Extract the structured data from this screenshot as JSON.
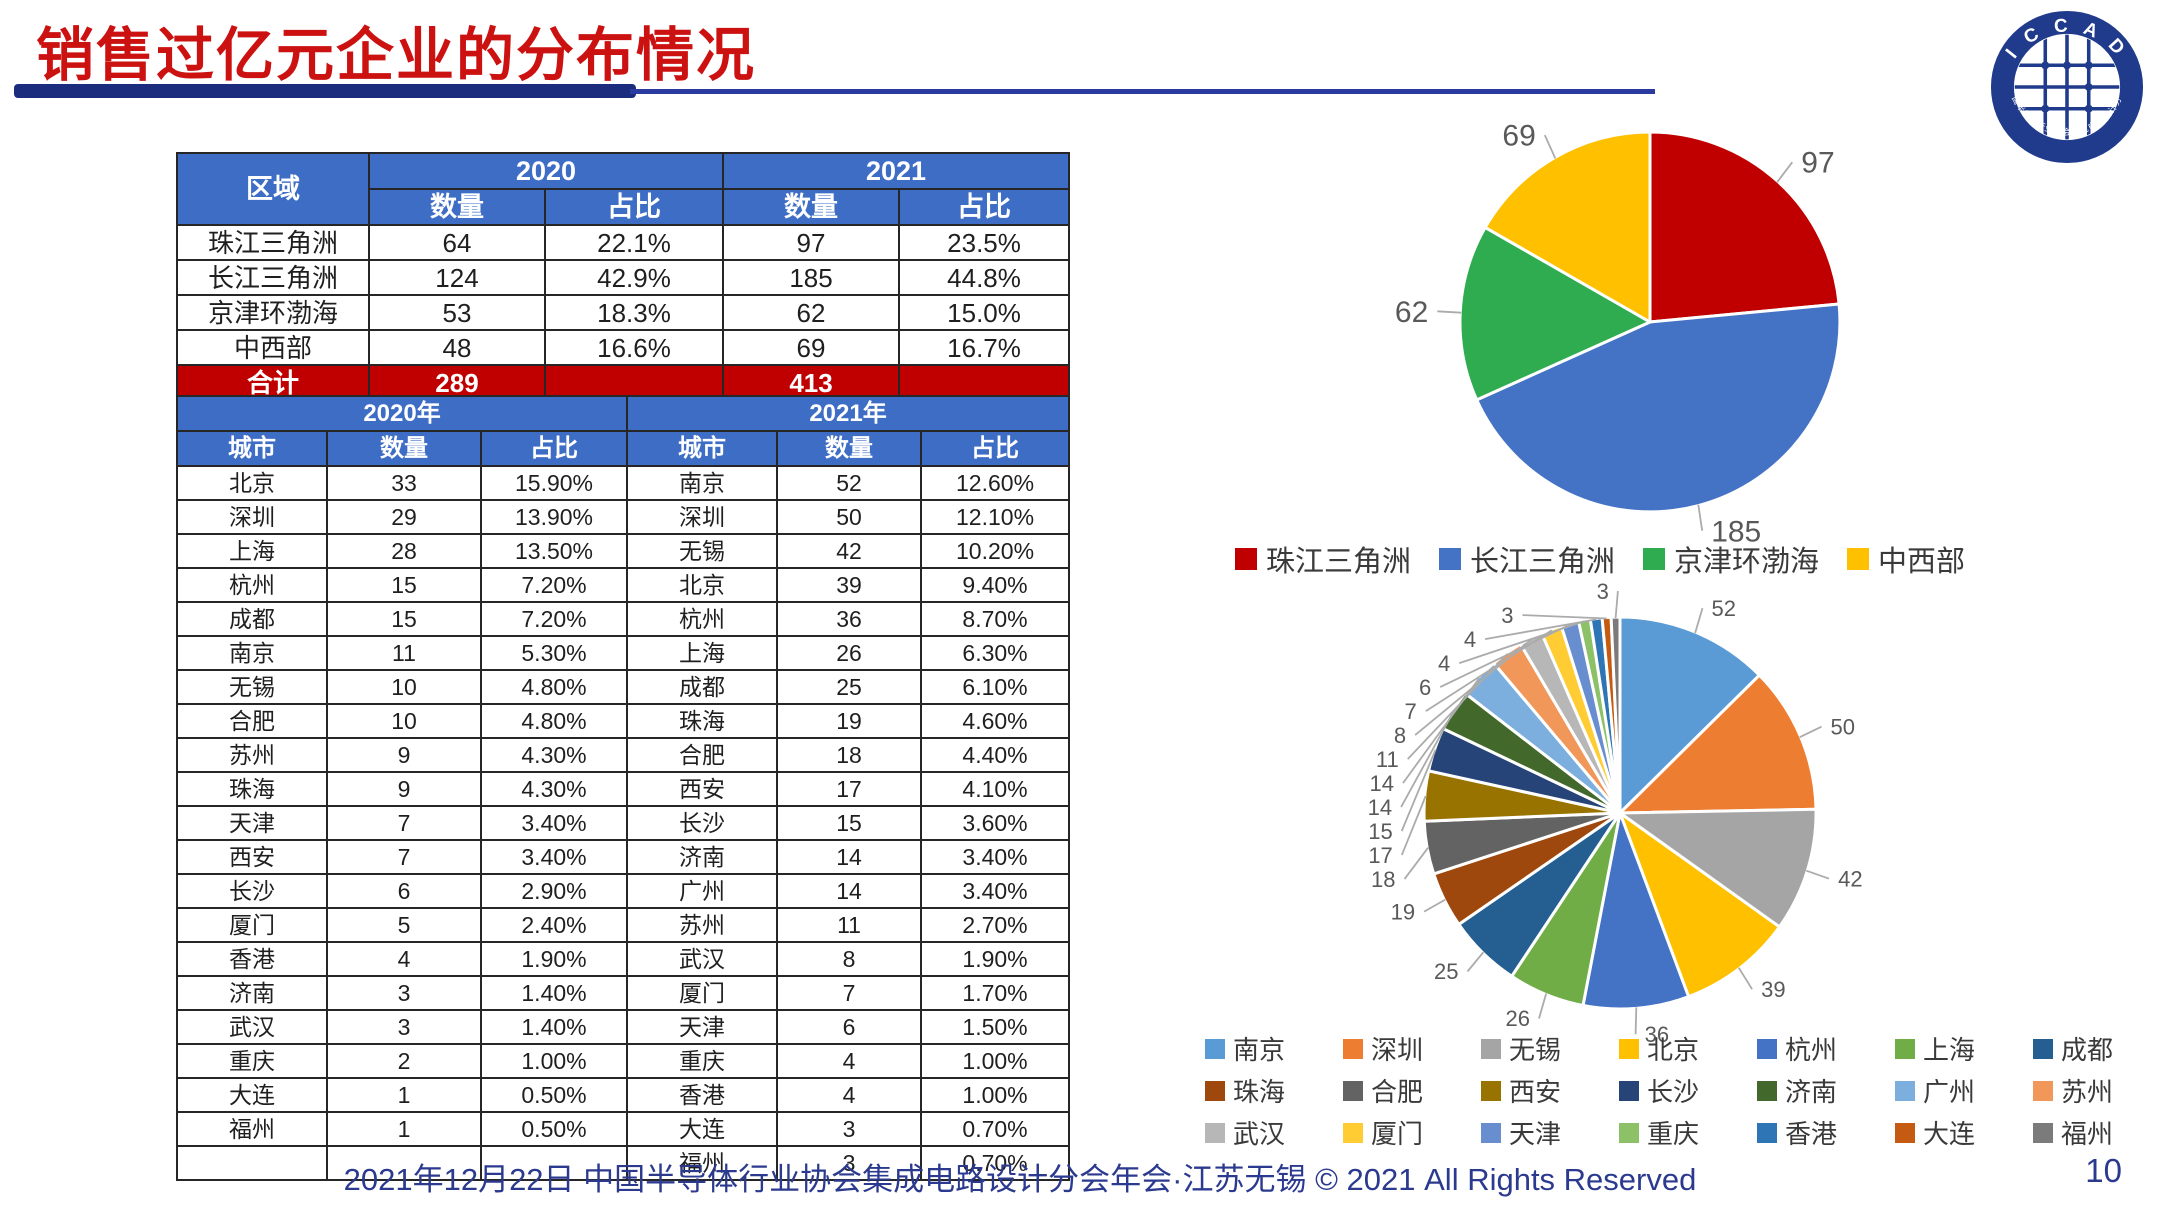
{
  "title": "销售过亿元企业的分布情况",
  "logo": {
    "top_text": "I C C A D",
    "bottom_text": "中国半导体行业协会集成电路设计分会"
  },
  "region_table": {
    "headers": {
      "region": "区域",
      "y2020": "2020",
      "y2021": "2021",
      "qty": "数量",
      "share": "占比"
    },
    "rows": [
      {
        "region": "珠江三角洲",
        "q2020": "64",
        "s2020": "22.1%",
        "q2021": "97",
        "s2021": "23.5%"
      },
      {
        "region": "长江三角洲",
        "q2020": "124",
        "s2020": "42.9%",
        "q2021": "185",
        "s2021": "44.8%"
      },
      {
        "region": "京津环渤海",
        "q2020": "53",
        "s2020": "18.3%",
        "q2021": "62",
        "s2021": "15.0%"
      },
      {
        "region": "中西部",
        "q2020": "48",
        "s2020": "16.6%",
        "q2021": "69",
        "s2021": "16.7%"
      }
    ],
    "total": {
      "label": "合计",
      "q2020": "289",
      "s2020": "",
      "q2021": "413",
      "s2021": ""
    }
  },
  "city_table": {
    "headers": {
      "y2020": "2020年",
      "y2021": "2021年",
      "city": "城市",
      "qty": "数量",
      "share": "占比"
    },
    "rows_2020": [
      [
        "北京",
        "33",
        "15.90%"
      ],
      [
        "深圳",
        "29",
        "13.90%"
      ],
      [
        "上海",
        "28",
        "13.50%"
      ],
      [
        "杭州",
        "15",
        "7.20%"
      ],
      [
        "成都",
        "15",
        "7.20%"
      ],
      [
        "南京",
        "11",
        "5.30%"
      ],
      [
        "无锡",
        "10",
        "4.80%"
      ],
      [
        "合肥",
        "10",
        "4.80%"
      ],
      [
        "苏州",
        "9",
        "4.30%"
      ],
      [
        "珠海",
        "9",
        "4.30%"
      ],
      [
        "天津",
        "7",
        "3.40%"
      ],
      [
        "西安",
        "7",
        "3.40%"
      ],
      [
        "长沙",
        "6",
        "2.90%"
      ],
      [
        "厦门",
        "5",
        "2.40%"
      ],
      [
        "香港",
        "4",
        "1.90%"
      ],
      [
        "济南",
        "3",
        "1.40%"
      ],
      [
        "武汉",
        "3",
        "1.40%"
      ],
      [
        "重庆",
        "2",
        "1.00%"
      ],
      [
        "大连",
        "1",
        "0.50%"
      ],
      [
        "福州",
        "1",
        "0.50%"
      ],
      [
        "",
        "",
        ""
      ]
    ],
    "rows_2021": [
      [
        "南京",
        "52",
        "12.60%"
      ],
      [
        "深圳",
        "50",
        "12.10%"
      ],
      [
        "无锡",
        "42",
        "10.20%"
      ],
      [
        "北京",
        "39",
        "9.40%"
      ],
      [
        "杭州",
        "36",
        "8.70%"
      ],
      [
        "上海",
        "26",
        "6.30%"
      ],
      [
        "成都",
        "25",
        "6.10%"
      ],
      [
        "珠海",
        "19",
        "4.60%"
      ],
      [
        "合肥",
        "18",
        "4.40%"
      ],
      [
        "西安",
        "17",
        "4.10%"
      ],
      [
        "长沙",
        "15",
        "3.60%"
      ],
      [
        "济南",
        "14",
        "3.40%"
      ],
      [
        "广州",
        "14",
        "3.40%"
      ],
      [
        "苏州",
        "11",
        "2.70%"
      ],
      [
        "武汉",
        "8",
        "1.90%"
      ],
      [
        "厦门",
        "7",
        "1.70%"
      ],
      [
        "天津",
        "6",
        "1.50%"
      ],
      [
        "重庆",
        "4",
        "1.00%"
      ],
      [
        "香港",
        "4",
        "1.00%"
      ],
      [
        "大连",
        "3",
        "0.70%"
      ],
      [
        "福州",
        "3",
        "0.70%"
      ]
    ]
  },
  "chart_data": [
    {
      "type": "pie",
      "categories": [
        "珠江三角洲",
        "长江三角洲",
        "京津环渤海",
        "中西部"
      ],
      "values": [
        97,
        185,
        62,
        69
      ],
      "colors": [
        "#c00000",
        "#4472c4",
        "#2fac4f",
        "#ffc000"
      ],
      "legend_position": "bottom",
      "start_angle_deg": 0,
      "direction": "clockwise",
      "data_labels": "values"
    },
    {
      "type": "pie",
      "categories": [
        "南京",
        "深圳",
        "无锡",
        "北京",
        "杭州",
        "上海",
        "成都",
        "珠海",
        "合肥",
        "西安",
        "长沙",
        "济南",
        "广州",
        "苏州",
        "武汉",
        "厦门",
        "天津",
        "重庆",
        "香港",
        "大连",
        "福州"
      ],
      "values": [
        52,
        50,
        42,
        39,
        36,
        26,
        25,
        19,
        18,
        17,
        15,
        14,
        14,
        11,
        8,
        7,
        6,
        4,
        4,
        3,
        3
      ],
      "colors": [
        "#5b9bd5",
        "#ed7d31",
        "#a5a5a5",
        "#ffc000",
        "#4472c4",
        "#70ad47",
        "#255e91",
        "#9e480e",
        "#636363",
        "#997300",
        "#264478",
        "#43682b",
        "#7cafdd",
        "#f1975a",
        "#b7b7b7",
        "#ffcd33",
        "#698ed0",
        "#8cc168",
        "#2e75b6",
        "#c55a11",
        "#7b7b7b"
      ],
      "legend_position": "bottom",
      "start_angle_deg": 0,
      "direction": "clockwise",
      "data_labels": "values"
    }
  ],
  "theme": {
    "title_red": "#cc1111",
    "table_header_blue": "#3e6dc5",
    "total_row_red": "#c00000",
    "accent_bar_navy": "#1b2c7e",
    "footer_navy": "#2b3a8f"
  },
  "footer": {
    "text": "2021年12月22日 中国半导体行业协会集成电路设计分会年会·江苏无锡 © 2021 All Rights Reserved",
    "page": "10"
  }
}
